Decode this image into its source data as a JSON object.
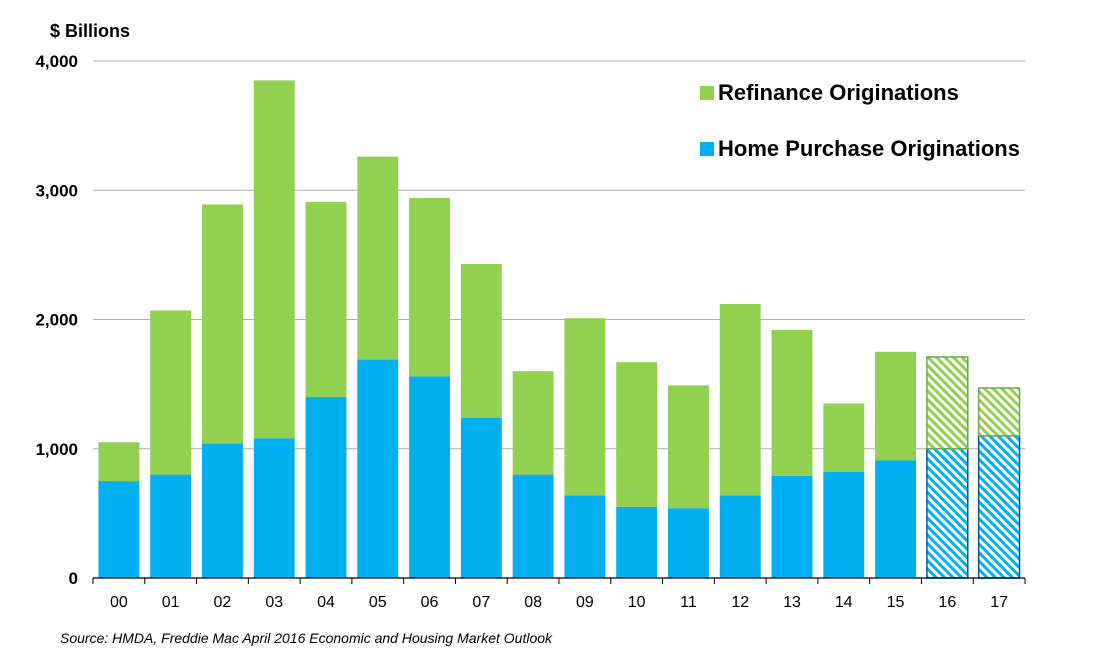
{
  "chart_data": {
    "type": "bar",
    "stacked": true,
    "ylabel": "$ Billions",
    "ylim": [
      0,
      4000
    ],
    "yticks": [
      "0",
      "1,000",
      "2,000",
      "3,000",
      "4,000"
    ],
    "ytick_values": [
      0,
      1000,
      2000,
      3000,
      4000
    ],
    "grid": true,
    "legend_position": "top-right",
    "categories": [
      "00",
      "01",
      "02",
      "03",
      "04",
      "05",
      "06",
      "07",
      "08",
      "09",
      "10",
      "11",
      "12",
      "13",
      "14",
      "15",
      "16",
      "17"
    ],
    "forecast_categories": [
      "16",
      "17"
    ],
    "series": [
      {
        "name": "Home Purchase Originations",
        "color": "#00b0f0",
        "values": [
          750,
          800,
          1040,
          1080,
          1400,
          1690,
          1560,
          1240,
          800,
          640,
          550,
          540,
          640,
          790,
          820,
          910,
          1000,
          1100
        ]
      },
      {
        "name": "Refinance Originations",
        "color": "#92d050",
        "values": [
          300,
          1270,
          1850,
          2770,
          1510,
          1570,
          1380,
          1190,
          800,
          1370,
          1120,
          950,
          1480,
          1130,
          530,
          840,
          710,
          370
        ]
      }
    ],
    "legend_order": [
      "Refinance Originations",
      "Home Purchase Originations"
    ],
    "source": "Source: HMDA, Freddie Mac April 2016 Economic and Housing Market Outlook"
  }
}
